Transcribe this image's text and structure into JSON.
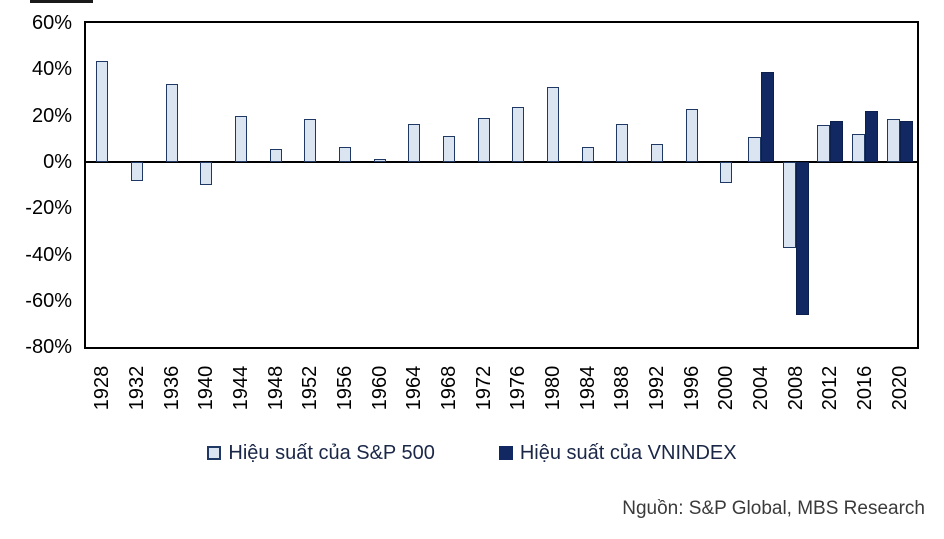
{
  "chart_data": {
    "type": "bar",
    "title": "",
    "xlabel": "",
    "ylabel": "",
    "ylim": [
      -80,
      60
    ],
    "y_tick_labels": [
      "60%",
      "40%",
      "20%",
      "0%",
      "-20%",
      "-40%",
      "-60%",
      "-80%"
    ],
    "y_tick_values": [
      60,
      40,
      20,
      0,
      -20,
      -40,
      -60,
      -80
    ],
    "grid": false,
    "legend_position": "bottom-center",
    "categories": [
      "1928",
      "1932",
      "1936",
      "1940",
      "1944",
      "1948",
      "1952",
      "1956",
      "1960",
      "1964",
      "1968",
      "1972",
      "1976",
      "1980",
      "1984",
      "1988",
      "1992",
      "1996",
      "2000",
      "2004",
      "2008",
      "2012",
      "2016",
      "2020"
    ],
    "series": [
      {
        "name": "Hiệu suất của S&P 500",
        "fill_color": "#dbe5f1",
        "border_color": "#1f3864",
        "values": [
          43.6,
          -8.2,
          33.9,
          -9.8,
          19.7,
          5.5,
          18.4,
          6.6,
          0.5,
          16.5,
          11.1,
          18.9,
          23.8,
          32.4,
          6.3,
          16.6,
          7.6,
          23.0,
          -9.1,
          11.0,
          -37.0,
          16.0,
          12.0,
          18.4
        ]
      },
      {
        "name": "Hiệu suất của VNINDEX",
        "fill_color": "#112862",
        "border_color": "#0d1f4d",
        "values": [
          null,
          null,
          null,
          null,
          null,
          null,
          null,
          null,
          null,
          null,
          null,
          null,
          null,
          null,
          null,
          null,
          null,
          null,
          null,
          38.8,
          -66.0,
          17.9,
          21.9,
          17.5
        ]
      }
    ]
  },
  "legend": {
    "sp500_label": "Hiệu suất của S&P 500",
    "vnindex_label": "Hiệu suất của VNINDEX"
  },
  "source_text": "Nguồn: S&P Global, MBS Research",
  "colors": {
    "sp500_fill": "#dbe5f1",
    "sp500_border": "#1f3864",
    "vnindex_fill": "#112862",
    "axis": "#000000",
    "source_text": "#3a3a3a"
  }
}
